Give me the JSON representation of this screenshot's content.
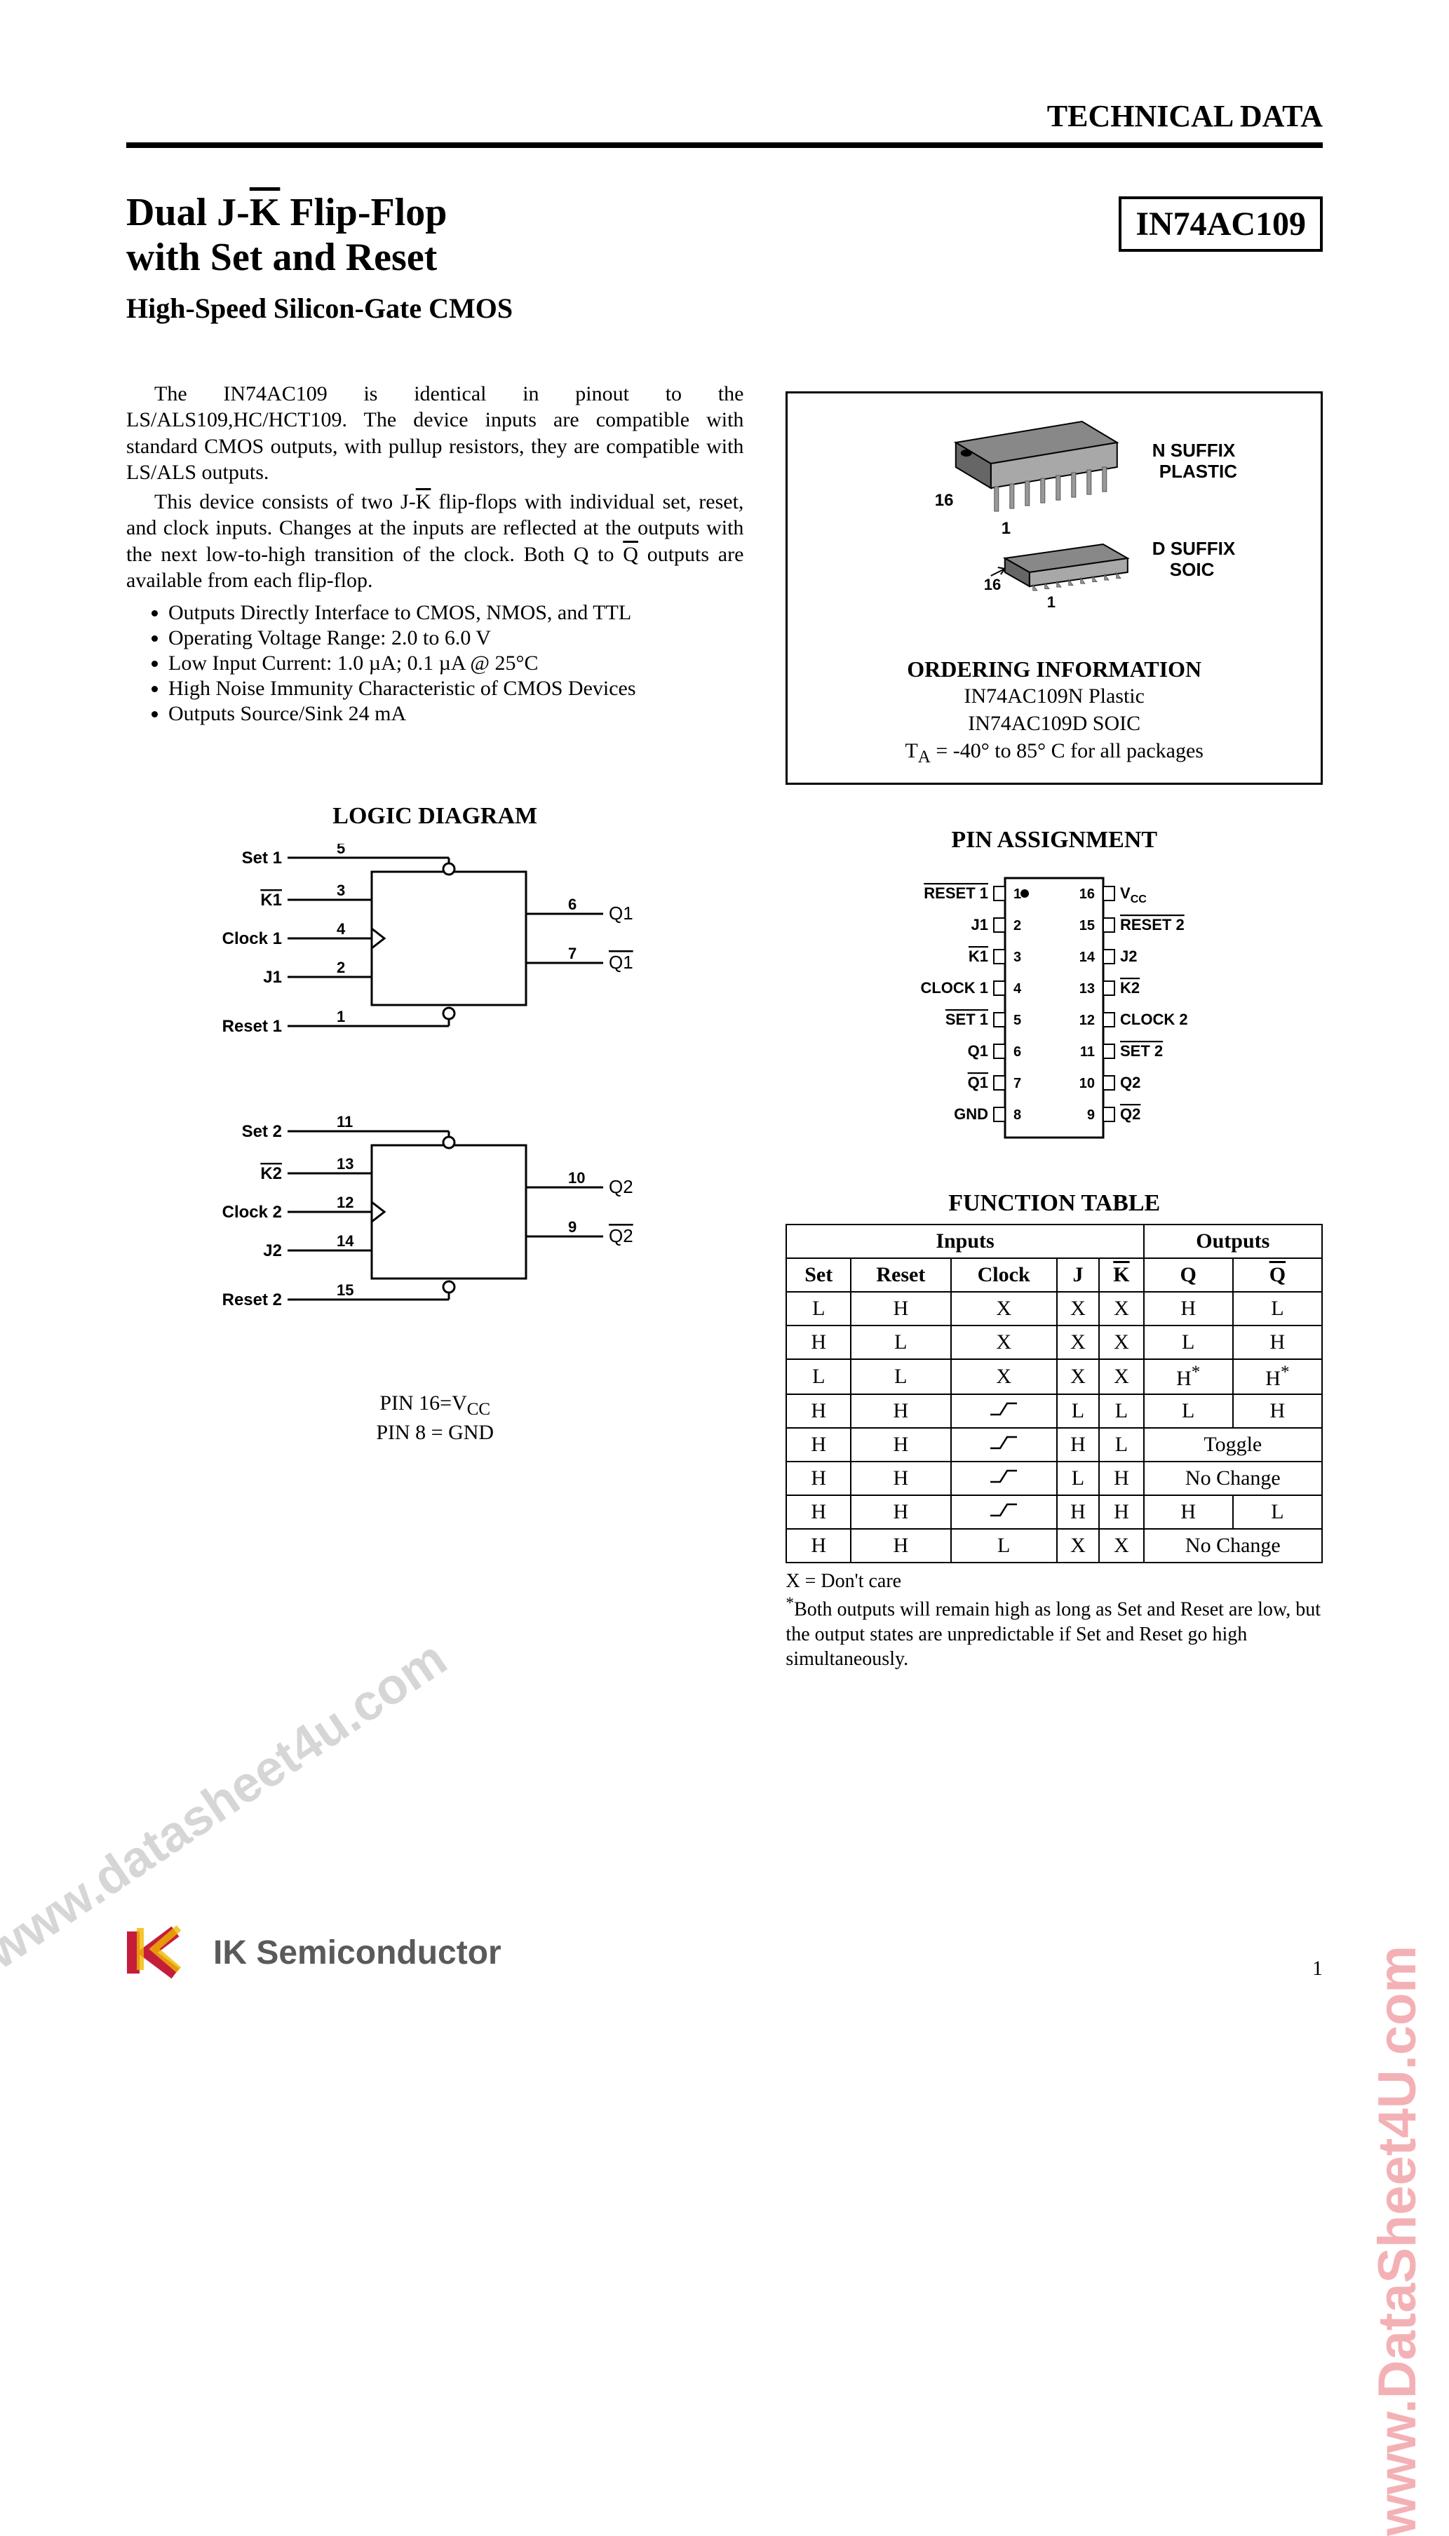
{
  "header": {
    "title": "TECHNICAL DATA"
  },
  "partNumber": "IN74AC109",
  "title": {
    "line1_pre": "Dual J-",
    "line1_kbar": "K",
    "line1_post": " Flip-Flop",
    "line2": "with Set and Reset",
    "subtitle": "High-Speed Silicon-Gate CMOS"
  },
  "body": {
    "p1": "The IN74AC109 is identical in pinout to the LS/ALS109,HC/HCT109. The device inputs are compatible with standard CMOS outputs, with pullup resistors, they are compatible with LS/ALS outputs.",
    "p2_pre": "This device consists of two J-",
    "p2_k": "K",
    "p2_mid": " flip-flops with individual set, reset, and clock inputs. Changes at the inputs are reflected at the outputs with the next low-to-high transition of the clock. Both Q to ",
    "p2_qbar": "Q",
    "p2_post": " outputs are available from each flip-flop."
  },
  "features": [
    "Outputs Directly Interface to CMOS, NMOS, and TTL",
    "Operating Voltage Range: 2.0 to 6.0 V",
    "Low Input Current: 1.0 µA; 0.1 µA @ 25°C",
    "High Noise Immunity Characteristic of CMOS Devices",
    "Outputs Source/Sink 24 mA"
  ],
  "logic": {
    "heading": "LOGIC DIAGRAM",
    "ff1": {
      "set": {
        "label": "Set 1",
        "pin": "5"
      },
      "k": {
        "label": "K1",
        "pin": "3",
        "overline": true
      },
      "clock": {
        "label": "Clock 1",
        "pin": "4"
      },
      "j": {
        "label": "J1",
        "pin": "2"
      },
      "reset": {
        "label": "Reset 1",
        "pin": "1"
      },
      "q": {
        "label": "Q1",
        "pin": "6"
      },
      "qbar": {
        "label": "Q1",
        "pin": "7",
        "overline": true
      }
    },
    "ff2": {
      "set": {
        "label": "Set 2",
        "pin": "11"
      },
      "k": {
        "label": "K2",
        "pin": "13",
        "overline": true
      },
      "clock": {
        "label": "Clock 2",
        "pin": "12"
      },
      "j": {
        "label": "J2",
        "pin": "14"
      },
      "reset": {
        "label": "Reset 2",
        "pin": "15"
      },
      "q": {
        "label": "Q2",
        "pin": "10"
      },
      "qbar": {
        "label": "Q2",
        "pin": "9",
        "overline": true
      }
    },
    "pinNote1_pre": "PIN 16=V",
    "pinNote1_sub": "CC",
    "pinNote2": "PIN 8 = GND"
  },
  "package": {
    "nSuffix1": "N SUFFIX",
    "nSuffix2": "PLASTIC",
    "dSuffix1": "D SUFFIX",
    "dSuffix2": "SOIC",
    "dip16": "16",
    "dip1": "1",
    "soic16": "16",
    "soic1": "1",
    "orderingHead": "ORDERING INFORMATION",
    "line1": "IN74AC109N Plastic",
    "line2": "IN74AC109D SOIC",
    "line3_pre": "T",
    "line3_sub": "A",
    "line3_post": " = -40° to 85° C for all packages"
  },
  "pinAssignment": {
    "heading": "PIN ASSIGNMENT",
    "left": [
      {
        "label": "RESET 1",
        "overline": true,
        "num": "1"
      },
      {
        "label": "J1",
        "overline": false,
        "num": "2"
      },
      {
        "label": "K1",
        "overline": true,
        "num": "3"
      },
      {
        "label": "CLOCK 1",
        "overline": false,
        "num": "4"
      },
      {
        "label": "SET 1",
        "overline": true,
        "num": "5"
      },
      {
        "label": "Q1",
        "overline": false,
        "num": "6"
      },
      {
        "label": "Q1",
        "overline": true,
        "num": "7"
      },
      {
        "label": "GND",
        "overline": false,
        "num": "8"
      }
    ],
    "right": [
      {
        "label": "VCC",
        "overline": false,
        "num": "16",
        "sub": "CC",
        "pre": "V"
      },
      {
        "label": "RESET 2",
        "overline": true,
        "num": "15"
      },
      {
        "label": "J2",
        "overline": false,
        "num": "14"
      },
      {
        "label": "K2",
        "overline": true,
        "num": "13"
      },
      {
        "label": "CLOCK 2",
        "overline": false,
        "num": "12"
      },
      {
        "label": "SET 2",
        "overline": true,
        "num": "11"
      },
      {
        "label": "Q2",
        "overline": false,
        "num": "10"
      },
      {
        "label": "Q2",
        "overline": true,
        "num": "9"
      }
    ]
  },
  "functionTable": {
    "heading": "FUNCTION TABLE",
    "groupHeaders": {
      "inputs": "Inputs",
      "outputs": "Outputs"
    },
    "cols": [
      "Set",
      "Reset",
      "Clock",
      "J",
      "K",
      "Q",
      "Q"
    ],
    "kbarCol": 4,
    "qbarCol": 6,
    "rows": [
      {
        "cells": [
          "L",
          "H",
          "X",
          "X",
          "X",
          "H",
          "L"
        ]
      },
      {
        "cells": [
          "H",
          "L",
          "X",
          "X",
          "X",
          "L",
          "H"
        ]
      },
      {
        "cells": [
          "L",
          "L",
          "X",
          "X",
          "X",
          "H*",
          "H*"
        ],
        "star": [
          5,
          6
        ]
      },
      {
        "cells": [
          "H",
          "H",
          "↑",
          "L",
          "L",
          "L",
          "H"
        ],
        "rise": 2
      },
      {
        "cells": [
          "H",
          "H",
          "↑",
          "H",
          "L",
          "Toggle"
        ],
        "rise": 2,
        "span": 2
      },
      {
        "cells": [
          "H",
          "H",
          "↑",
          "L",
          "H",
          "No Change"
        ],
        "rise": 2,
        "span": 2
      },
      {
        "cells": [
          "H",
          "H",
          "↑",
          "H",
          "H",
          "H",
          "L"
        ],
        "rise": 2
      },
      {
        "cells": [
          "H",
          "H",
          "L",
          "X",
          "X",
          "No Change"
        ],
        "span": 2
      }
    ],
    "noteX": "X = Don't care",
    "noteStar": "*Both outputs will remain high as long as Set and Reset are low, but the output states are unpredictable if Set and Reset go high simultaneously."
  },
  "footer": {
    "companyName": "IK Semiconductor",
    "companySub": "Semiconductor",
    "pageNum": "1"
  },
  "watermarks": {
    "left": "www.datasheet4u.com",
    "right": "www.DataSheet4U.com"
  },
  "colors": {
    "logoRed": "#c41e3a",
    "logoYellow": "#f0b800",
    "logoGray": "#5a5a5a",
    "chipGray": "#a8a8a8",
    "chipDark": "#888888",
    "chipShadow": "#666666",
    "watermarkGray": "rgba(180,180,180,0.55)",
    "watermarkPink": "#f3b1b6"
  },
  "svg": {
    "logicBoxW": 260,
    "logicBoxH": 200,
    "bubbleR": 8,
    "lineLen": 120,
    "pinBoxW": 170,
    "pinBoxH": 360,
    "pinPitch": 45
  }
}
